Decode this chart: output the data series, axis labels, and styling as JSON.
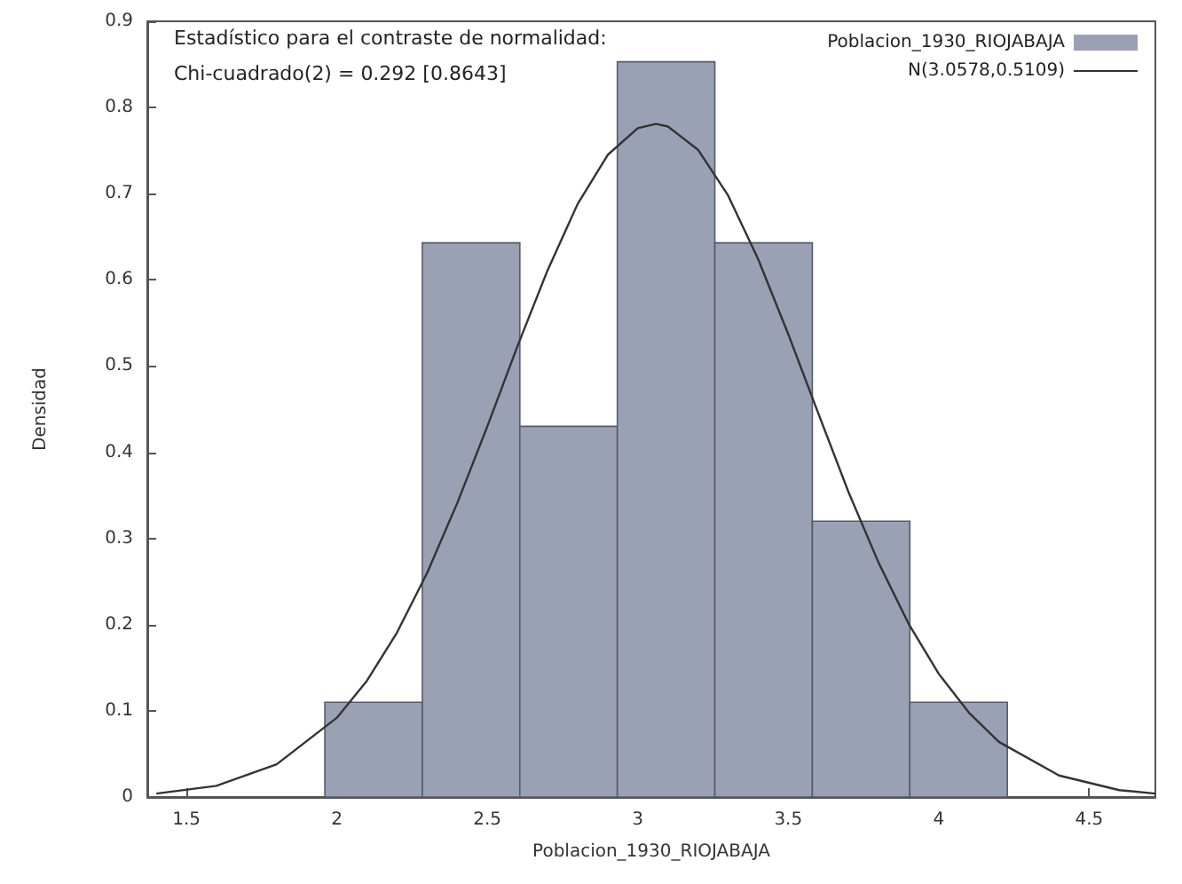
{
  "chart_data": {
    "type": "histogram",
    "xlabel": "Poblacion_1930_RIOJABAJA",
    "ylabel": "Densidad",
    "annotations": [
      "Estadístico para el contraste de normalidad:",
      "Chi-cuadrado(2) = 0.292 [0.8643]"
    ],
    "series": [
      {
        "name": "Poblacion_1930_RIOJABAJA",
        "color": "#9ba1b5",
        "bins": [
          1.96,
          2.284,
          2.608,
          2.932,
          3.256,
          3.58,
          3.904,
          4.228
        ],
        "values": [
          0.11,
          0.643,
          0.43,
          0.853,
          0.643,
          0.32,
          0.11
        ]
      },
      {
        "type": "line",
        "name": "N(3.0578,0.5109)",
        "color": "#333333",
        "x": [
          1.4,
          1.6,
          1.8,
          2.0,
          2.1,
          2.2,
          2.3,
          2.4,
          2.5,
          2.6,
          2.7,
          2.8,
          2.9,
          3.0,
          3.06,
          3.1,
          3.2,
          3.3,
          3.4,
          3.5,
          3.6,
          3.7,
          3.8,
          3.9,
          4.0,
          4.1,
          4.2,
          4.4,
          4.6,
          4.72
        ],
        "values": [
          0.004,
          0.013,
          0.038,
          0.092,
          0.135,
          0.191,
          0.26,
          0.341,
          0.43,
          0.523,
          0.611,
          0.688,
          0.745,
          0.776,
          0.781,
          0.778,
          0.751,
          0.698,
          0.624,
          0.537,
          0.445,
          0.354,
          0.272,
          0.201,
          0.143,
          0.098,
          0.064,
          0.025,
          0.008,
          0.004
        ]
      }
    ],
    "xlim": [
      1.37,
      4.72
    ],
    "xticks": [
      1.5,
      2,
      2.5,
      3,
      3.5,
      4,
      4.5
    ],
    "ylim": [
      0,
      0.9
    ],
    "yticks": [
      0,
      0.1,
      0.2,
      0.3,
      0.4,
      0.5,
      0.6,
      0.7,
      0.8,
      0.9
    ],
    "grid": false,
    "legend": "top right",
    "marker": "none",
    "line_style": "solid"
  }
}
